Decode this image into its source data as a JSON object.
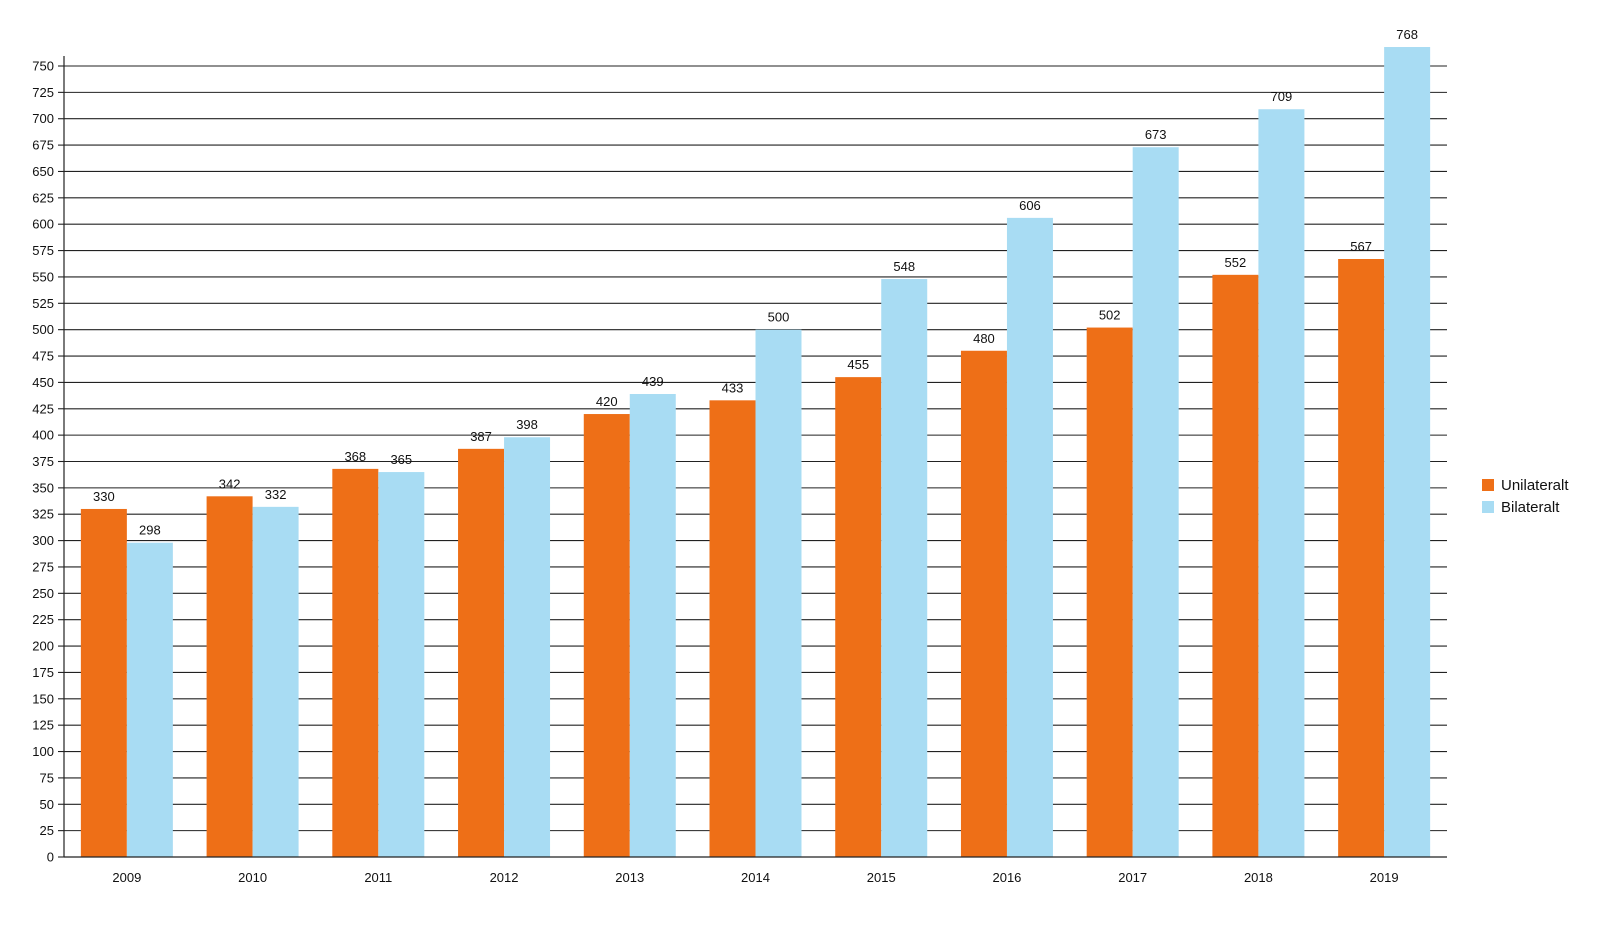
{
  "chart_data": {
    "type": "bar",
    "title": "",
    "xlabel": "",
    "ylabel": "",
    "categories": [
      "2009",
      "2010",
      "2011",
      "2012",
      "2013",
      "2014",
      "2015",
      "2016",
      "2017",
      "2018",
      "2019"
    ],
    "series": [
      {
        "name": "Unilateralt",
        "color": "#ee6f17",
        "values": [
          330,
          342,
          368,
          387,
          420,
          433,
          455,
          480,
          502,
          552,
          567
        ]
      },
      {
        "name": "Bilateralt",
        "color": "#a8dcf3",
        "values": [
          298,
          332,
          365,
          398,
          439,
          500,
          548,
          606,
          673,
          709,
          768
        ]
      }
    ],
    "ylim": [
      0,
      750
    ],
    "ytick_step": 25,
    "grid": true,
    "data_labels": true,
    "legend_position": "right"
  }
}
